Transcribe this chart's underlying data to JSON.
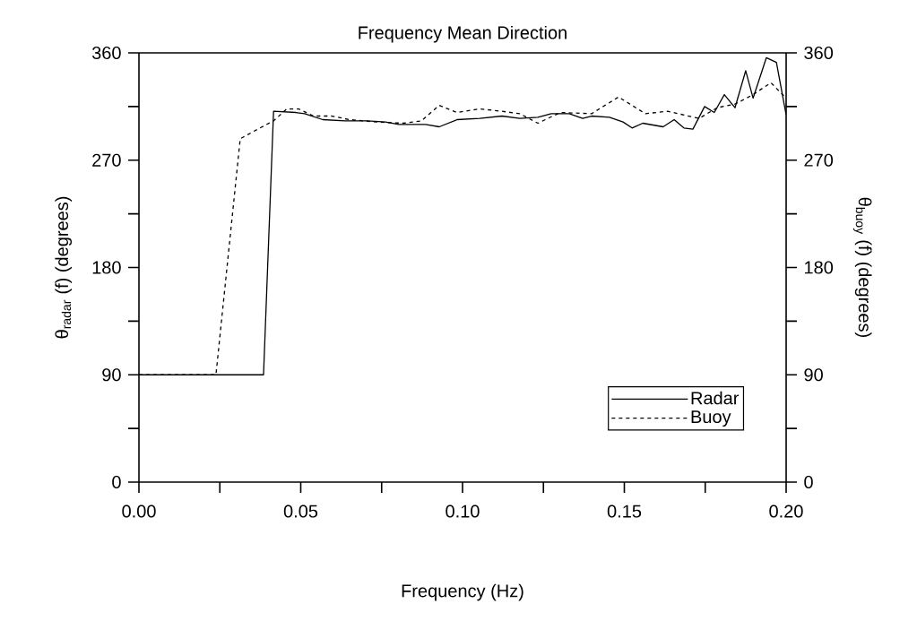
{
  "chart_data": {
    "type": "line",
    "title": "Frequency Mean Direction",
    "xlabel": "Frequency (Hz)",
    "ylabel": "θ$_{radar}$ (f)     (degrees)",
    "y2label": "θ$_{buoy}$ (f)     (degrees)",
    "xlim": [
      0,
      0.2
    ],
    "xticks": [
      {
        "value": 0,
        "label": "0.00"
      },
      {
        "value": 0.025,
        "label": null
      },
      {
        "value": 0.05,
        "label": "0.05"
      },
      {
        "value": 0.075,
        "label": null
      },
      {
        "value": 0.1,
        "label": "0.10"
      },
      {
        "value": 0.125,
        "label": null
      },
      {
        "value": 0.15,
        "label": "0.15"
      },
      {
        "value": 0.175,
        "label": null
      },
      {
        "value": 0.2,
        "label": "0.20"
      }
    ],
    "ylim": [
      0,
      360
    ],
    "yticks": [
      0,
      {
        "value": 45,
        "label": null
      },
      90,
      {
        "value": 135,
        "label": null
      },
      180,
      {
        "value": 225,
        "label": null
      },
      270,
      {
        "value": 315,
        "label": null
      },
      360
    ],
    "y2lim": [
      0,
      360
    ],
    "y2ticks": [
      0,
      {
        "value": 45,
        "label": null
      },
      90,
      {
        "value": 135,
        "label": null
      },
      180,
      {
        "value": 225,
        "label": null
      },
      270,
      {
        "value": 315,
        "label": null
      },
      360
    ],
    "grid": false,
    "legend": "bottom right",
    "series": [
      {
        "name": "Radar",
        "color": "#000000",
        "line_style": "solid",
        "x": [
          0,
          0.0385,
          0.0416,
          0.0485,
          0.0512,
          0.0568,
          0.0637,
          0.0706,
          0.0762,
          0.0803,
          0.0886,
          0.0928,
          0.0983,
          0.1053,
          0.1122,
          0.1177,
          0.1233,
          0.1274,
          0.133,
          0.1371,
          0.1399,
          0.1454,
          0.1496,
          0.1524,
          0.1557,
          0.162,
          0.1654,
          0.1684,
          0.1712,
          0.1748,
          0.1778,
          0.1809,
          0.1842,
          0.1875,
          0.1898,
          0.1939,
          0.197,
          0.2
        ],
        "values": [
          90,
          90,
          311,
          310,
          309,
          304,
          303,
          303,
          302,
          300,
          300,
          298,
          304,
          305,
          307,
          305,
          306,
          309,
          309,
          305,
          307,
          306,
          302,
          297,
          301,
          298,
          304,
          297,
          296,
          315,
          310,
          325,
          314,
          345,
          322,
          356,
          352,
          308
        ]
      },
      {
        "name": "Buoy",
        "color": "#000000",
        "line_style": "dashed",
        "x": [
          0,
          0.0238,
          0.0313,
          0.0374,
          0.0416,
          0.0457,
          0.0493,
          0.054,
          0.0596,
          0.0651,
          0.0734,
          0.0817,
          0.0873,
          0.0928,
          0.0983,
          0.1053,
          0.1122,
          0.1177,
          0.1233,
          0.1302,
          0.1399,
          0.1482,
          0.1565,
          0.1634,
          0.1731,
          0.1787,
          0.1842,
          0.1898,
          0.1953,
          0.2
        ],
        "values": [
          90,
          90,
          288,
          297,
          303,
          313,
          313,
          307,
          307,
          304,
          302,
          301,
          303,
          316,
          310,
          313,
          311,
          309,
          301,
          310,
          309,
          323,
          309,
          311,
          305,
          314,
          317,
          325,
          335,
          322
        ]
      }
    ]
  }
}
